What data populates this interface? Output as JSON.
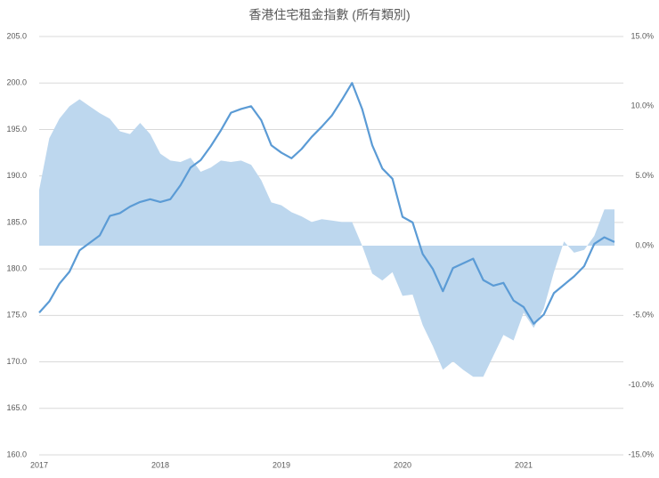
{
  "chart_data": {
    "type": "line",
    "title": "香港住宅租金指數 (所有類別)",
    "categories": [
      "2017",
      null,
      null,
      null,
      null,
      null,
      null,
      null,
      null,
      null,
      null,
      null,
      "2018",
      null,
      null,
      null,
      null,
      null,
      null,
      null,
      null,
      null,
      null,
      null,
      "2019",
      null,
      null,
      null,
      null,
      null,
      null,
      null,
      null,
      null,
      null,
      null,
      "2020",
      null,
      null,
      null,
      null,
      null,
      null,
      null,
      null,
      null,
      null,
      null,
      "2021",
      null,
      null,
      null,
      null,
      null,
      null,
      null,
      null,
      null
    ],
    "series": [
      {
        "type": "area",
        "axis": "y2",
        "color": "#bdd7ee",
        "values": [
          4.0,
          7.7,
          9.1,
          10.0,
          10.5,
          10.0,
          9.5,
          9.1,
          8.2,
          8.0,
          8.8,
          8.0,
          6.6,
          6.1,
          6.0,
          6.3,
          5.3,
          5.6,
          6.1,
          6.0,
          6.1,
          5.8,
          4.7,
          3.1,
          2.9,
          2.4,
          2.1,
          1.7,
          1.9,
          1.8,
          1.7,
          1.7,
          0.0,
          -2.0,
          -2.5,
          -1.9,
          -3.6,
          -3.5,
          -5.7,
          -7.2,
          -8.9,
          -8.3,
          -8.9,
          -9.4,
          -9.4,
          -7.9,
          -6.4,
          -6.8,
          -4.8,
          -5.9,
          -4.5,
          -1.9,
          0.3,
          -0.5,
          -0.3,
          0.7,
          2.6,
          2.6
        ]
      },
      {
        "type": "line",
        "color": "#5b9bd5",
        "values": [
          175.3,
          176.5,
          178.4,
          179.7,
          182.0,
          182.8,
          183.6,
          185.7,
          186.0,
          186.7,
          187.2,
          187.5,
          187.2,
          187.5,
          189.0,
          190.9,
          191.7,
          193.2,
          194.9,
          196.8,
          197.2,
          197.5,
          196.0,
          193.3,
          192.5,
          191.9,
          192.9,
          194.2,
          195.3,
          196.5,
          198.2,
          200.0,
          197.2,
          193.3,
          190.8,
          189.7,
          185.6,
          185.0,
          181.6,
          180.0,
          177.6,
          180.1,
          180.6,
          181.1,
          178.8,
          178.2,
          178.5,
          176.6,
          175.9,
          174.1,
          175.1,
          177.4,
          178.3,
          179.2,
          180.3,
          182.7,
          183.4,
          182.9
        ]
      }
    ],
    "ylim": [
      160,
      205
    ],
    "yticks": [
      {
        "value": 160,
        "label": "160.0"
      },
      {
        "value": 165,
        "label": "165.0"
      },
      {
        "value": 170,
        "label": "170.0"
      },
      {
        "value": 175,
        "label": "175.0"
      },
      {
        "value": 180,
        "label": "180.0"
      },
      {
        "value": 185,
        "label": "185.0"
      },
      {
        "value": 190,
        "label": "190.0"
      },
      {
        "value": 195,
        "label": "195.0"
      },
      {
        "value": 200,
        "label": "200.0"
      },
      {
        "value": 205,
        "label": "205.0"
      }
    ],
    "y2lim": [
      -15,
      15
    ],
    "y2ticks": [
      {
        "value": -15,
        "label": "-15.0%"
      },
      {
        "value": -10,
        "label": "-10.0%"
      },
      {
        "value": -5,
        "label": "-5.0%"
      },
      {
        "value": 0,
        "label": "0.0%"
      },
      {
        "value": 5,
        "label": "5.0%"
      },
      {
        "value": 10,
        "label": "10.0%"
      },
      {
        "value": 15,
        "label": "15.0%"
      }
    ],
    "grid": true
  }
}
